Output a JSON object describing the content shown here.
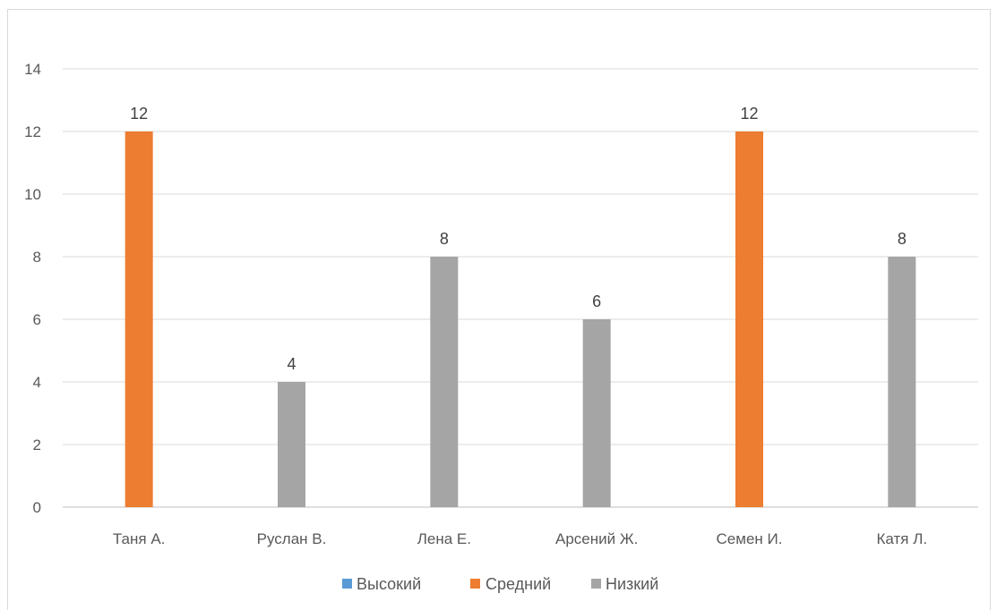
{
  "chart_data": {
    "type": "bar",
    "title": "",
    "xlabel": "",
    "ylabel": "",
    "categories": [
      "Таня А.",
      "Руслан В.",
      "Лена Е.",
      "Арсений Ж.",
      "Семен И.",
      "Катя Л."
    ],
    "series": [
      {
        "name": "Высокий",
        "color": "#5b9bd5",
        "values": [
          0,
          0,
          0,
          0,
          0,
          0
        ]
      },
      {
        "name": "Средний",
        "color": "#ed7d31",
        "values": [
          12,
          0,
          0,
          0,
          12,
          0
        ]
      },
      {
        "name": "Низкий",
        "color": "#a5a5a5",
        "values": [
          0,
          4,
          8,
          6,
          0,
          8
        ]
      }
    ],
    "data_labels": [
      "12",
      "4",
      "8",
      "6",
      "12",
      "8"
    ],
    "ylim": [
      0,
      14
    ],
    "yticks": [
      0,
      2,
      4,
      6,
      8,
      10,
      12,
      14
    ],
    "grid": true,
    "legend_position": "bottom",
    "colors": {
      "gridline": "#d9d9d9",
      "axis": "#bfbfbf",
      "frame": "#d9d9d9"
    }
  }
}
